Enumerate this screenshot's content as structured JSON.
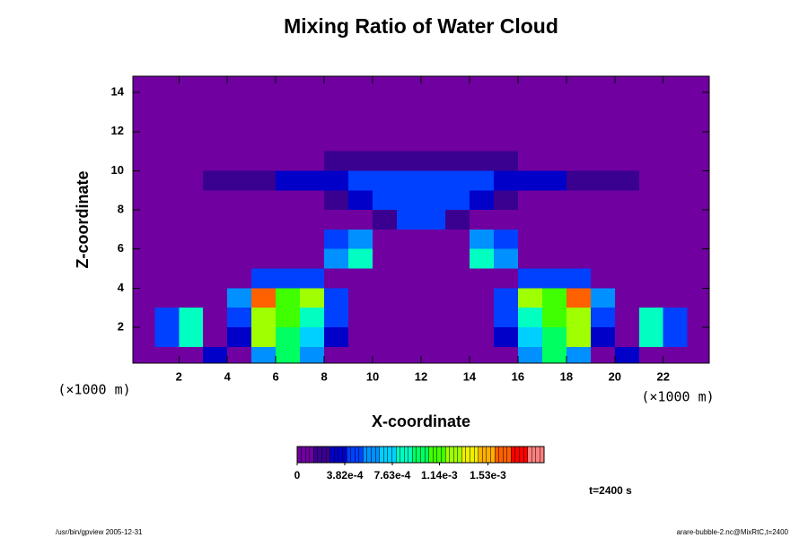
{
  "chart_data": {
    "type": "contour",
    "title": "Mixing Ratio of Water Cloud",
    "xlabel": "X-coordinate",
    "ylabel": "Z-coordinate",
    "xunit": "(×1000 m)",
    "yunit": "(×1000 m)",
    "annotation": "t=2400 s",
    "xlim": [
      0.1,
      23.9
    ],
    "ylim": [
      0.17,
      14.83
    ],
    "xticks": [
      2,
      4,
      6,
      8,
      10,
      12,
      14,
      16,
      18,
      20,
      22
    ],
    "yticks": [
      2,
      4,
      6,
      8,
      10,
      12,
      14
    ],
    "x": [
      0.5,
      1.5,
      2.5,
      3.5,
      4.5,
      5.5,
      6.5,
      7.5,
      8.5,
      9.5,
      10.5,
      11.5,
      12.5,
      13.5,
      14.5,
      15.5,
      16.5,
      17.5,
      18.5,
      19.5,
      20.5,
      21.5,
      22.5,
      23.5
    ],
    "y": [
      0.5,
      1.5,
      2.5,
      3.5,
      4.5,
      5.5,
      6.5,
      7.5,
      8.5,
      9.5,
      10.5,
      11.5,
      12.5,
      13.5,
      14.5
    ],
    "z": [
      [
        0,
        0,
        0,
        0.0003,
        0,
        0.0006,
        0.001,
        0.0006,
        0,
        0,
        0,
        0,
        0,
        0,
        0,
        0,
        0.0006,
        0.001,
        0.0006,
        0,
        0.0003,
        0,
        0,
        0
      ],
      [
        0,
        0.0005,
        0.0009,
        0,
        0.0003,
        0.0012,
        0.001,
        0.0007,
        0.0003,
        0,
        0,
        0,
        0,
        0,
        0,
        0.0003,
        0.0007,
        0.001,
        0.0012,
        0.0003,
        0,
        0.0009,
        0.0005,
        0
      ],
      [
        0,
        0.0004,
        0.0008,
        0,
        0.0004,
        0.0013,
        0.0011,
        0.0008,
        0.0005,
        0,
        0,
        0,
        0,
        0,
        0,
        0.0005,
        0.0008,
        0.0011,
        0.0013,
        0.0004,
        0,
        0.0008,
        0.0004,
        0
      ],
      [
        0,
        0,
        0,
        0,
        0.0006,
        0.0016,
        0.0011,
        0.0012,
        0.0004,
        0,
        0,
        0,
        0,
        0,
        0,
        0.0004,
        0.0012,
        0.0011,
        0.0016,
        0.0006,
        0,
        0,
        0,
        0
      ],
      [
        0,
        0,
        0,
        0,
        0,
        0.0004,
        0.0005,
        0.0004,
        0,
        0,
        0,
        0,
        0,
        0,
        0,
        0,
        0.0004,
        0.0005,
        0.0004,
        0,
        0,
        0,
        0,
        0
      ],
      [
        0,
        0,
        0,
        0,
        0,
        0,
        0,
        0,
        0.0006,
        0.0009,
        0,
        0,
        0,
        0,
        0.0009,
        0.0006,
        0,
        0,
        0,
        0,
        0,
        0,
        0,
        0
      ],
      [
        0,
        0,
        0,
        0,
        0,
        0,
        0,
        0,
        0.0005,
        0.0006,
        0,
        0,
        0,
        0,
        0.0006,
        0.0005,
        0,
        0,
        0,
        0,
        0,
        0,
        0,
        0
      ],
      [
        0,
        0,
        0,
        0,
        0,
        0,
        0,
        0,
        0,
        0,
        0.0002,
        0.0004,
        0.0004,
        0.0002,
        0,
        0,
        0,
        0,
        0,
        0,
        0,
        0,
        0,
        0
      ],
      [
        0,
        0,
        0,
        0,
        0,
        0,
        0,
        0.0001,
        0.0002,
        0.0003,
        0.0004,
        0.0005,
        0.0005,
        0.0004,
        0.0003,
        0.0002,
        0.0001,
        0,
        0,
        0,
        0,
        0,
        0,
        0
      ],
      [
        0,
        0,
        0.0001,
        0.0002,
        0.0002,
        0.0002,
        0.0003,
        0.0003,
        0.0003,
        0.0004,
        0.0004,
        0.0004,
        0.0004,
        0.0004,
        0.0004,
        0.0003,
        0.0003,
        0.0003,
        0.0002,
        0.0002,
        0.0002,
        0.0001,
        0,
        0
      ],
      [
        0,
        0,
        0,
        0,
        0,
        0,
        0.0001,
        0.0001,
        0.0002,
        0.0002,
        0.0002,
        0.0002,
        0.0002,
        0.0002,
        0.0002,
        0.0002,
        0.0001,
        0.0001,
        0,
        0,
        0,
        0,
        0,
        0
      ],
      [
        0,
        0,
        0,
        0,
        0,
        0,
        0,
        0,
        0,
        0,
        0,
        0.0001,
        0.0001,
        0,
        0,
        0,
        0,
        0,
        0,
        0,
        0,
        0,
        0,
        0
      ],
      [
        0,
        0,
        0,
        0,
        0,
        0,
        0,
        0,
        0,
        0,
        0,
        0,
        0,
        0,
        0,
        0,
        0,
        0,
        0,
        0,
        0,
        0,
        0,
        0
      ],
      [
        0,
        0,
        0,
        0,
        0,
        0,
        0,
        0,
        0,
        0,
        0,
        0,
        0,
        0,
        0,
        0,
        0,
        0,
        0,
        0,
        0,
        0,
        0,
        0
      ],
      [
        0,
        0,
        0,
        0,
        0,
        0,
        0,
        0,
        0,
        0,
        0,
        0,
        0,
        0,
        0,
        0,
        0,
        0,
        0,
        0,
        0,
        0,
        0,
        0
      ]
    ],
    "colorbar": {
      "clim": [
        0,
        0.00198
      ],
      "colors": [
        "#7000a0",
        "#3a0090",
        "#0000c8",
        "#0040ff",
        "#0090ff",
        "#00d0ff",
        "#00ffc0",
        "#00ff60",
        "#40ff00",
        "#a0ff00",
        "#f0f000",
        "#ffb000",
        "#ff6000",
        "#ff0000",
        "#ff8080"
      ],
      "ticks": [
        0,
        {
          "value": 0.000382,
          "label": "3.82e-4"
        },
        {
          "value": 0.000763,
          "label": "7.63e-4"
        },
        {
          "value": 0.00114,
          "label": "1.14e-3"
        },
        {
          "value": 0.00153,
          "label": "1.53e-3"
        }
      ]
    }
  },
  "footer": {
    "left": "/usr/bin/gpview 2005-12-31",
    "right": "arare-bubble-2.nc@MixRtC,t=2400"
  }
}
